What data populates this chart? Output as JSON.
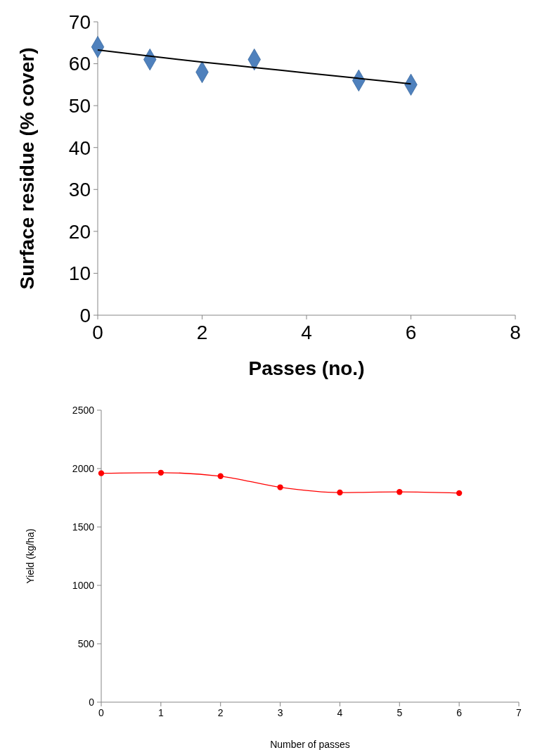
{
  "chart_data": [
    {
      "type": "scatter",
      "xlabel": "Passes (no.)",
      "ylabel": "Surface residue (% cover)",
      "xlim": [
        0,
        8
      ],
      "xticks": [
        0,
        2,
        4,
        6,
        8
      ],
      "ylim": [
        0,
        70
      ],
      "yticks": [
        0,
        10,
        20,
        30,
        40,
        50,
        60,
        70
      ],
      "series": [
        {
          "color": "#4f81bd",
          "marker": "diamond",
          "x": [
            0,
            1,
            2,
            3,
            5,
            6
          ],
          "values": [
            64,
            61,
            58,
            61,
            56,
            55
          ]
        },
        {
          "type": "line",
          "color": "#000000",
          "marker": "none",
          "x": [
            0,
            1,
            2,
            3,
            4,
            5,
            6
          ],
          "values": [
            63.3,
            61.8,
            60.4,
            59.1,
            57.8,
            56.5,
            55.2
          ]
        }
      ]
    },
    {
      "type": "line",
      "xlabel": "Number of passes",
      "ylabel": "Yield (kg/ha)",
      "xlim": [
        0,
        7
      ],
      "xticks": [
        0,
        1,
        2,
        3,
        4,
        5,
        6,
        7
      ],
      "ylim": [
        0,
        2500
      ],
      "yticks": [
        0,
        500,
        1000,
        1500,
        2000,
        2500
      ],
      "marker": "circle",
      "series": [
        {
          "color": "#ff0000",
          "x": [
            0,
            1,
            2,
            3,
            4,
            5,
            6
          ],
          "values": [
            1960,
            1965,
            1935,
            1840,
            1795,
            1800,
            1790
          ]
        }
      ]
    }
  ]
}
